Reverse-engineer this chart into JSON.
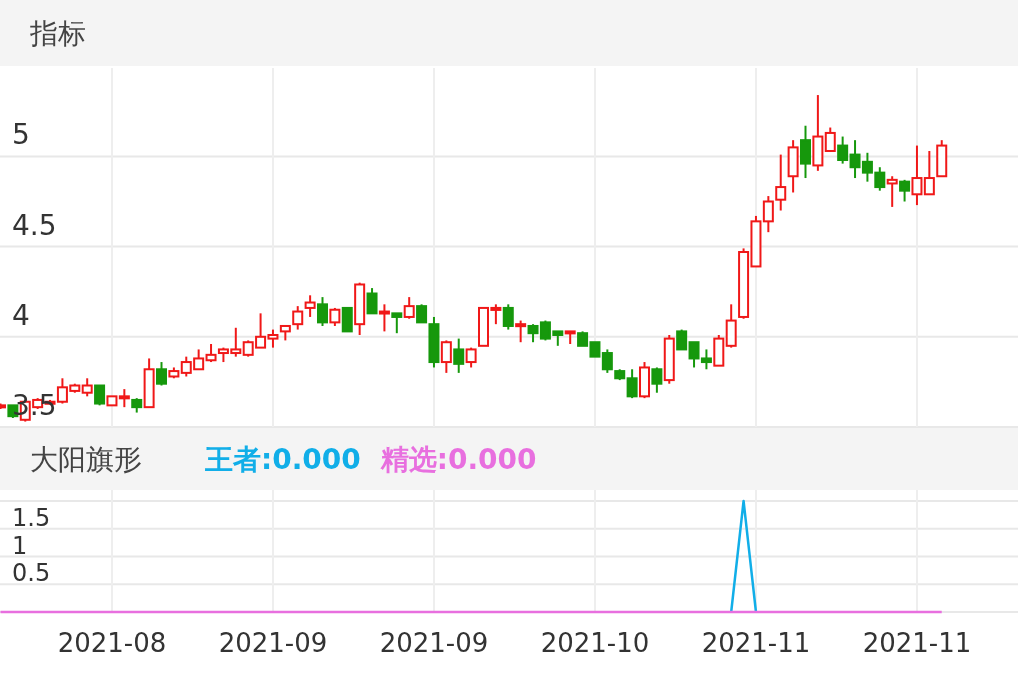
{
  "chart_data": [
    {
      "type": "candlestick",
      "title": "指标",
      "grid": true,
      "tick_labels": "y",
      "categories": [
        null,
        null,
        null,
        null,
        null,
        null,
        null,
        null,
        null,
        "2021-08",
        null,
        null,
        null,
        null,
        null,
        null,
        null,
        null,
        null,
        null,
        null,
        null,
        "2021-09",
        null,
        null,
        null,
        null,
        null,
        null,
        null,
        null,
        null,
        null,
        null,
        null,
        "2021-09",
        null,
        null,
        null,
        null,
        null,
        null,
        null,
        null,
        null,
        null,
        null,
        null,
        "2021-10",
        null,
        null,
        null,
        null,
        null,
        null,
        null,
        null,
        null,
        null,
        null,
        null,
        "2021-11",
        null,
        null,
        null,
        null,
        null,
        null,
        null,
        null,
        null,
        null,
        null,
        null,
        "2021-11",
        null,
        null
      ],
      "ylim": [
        3.5,
        5.49
      ],
      "yticks": [
        3.5,
        4,
        4.5,
        5
      ],
      "ohlc": [
        [
          3.61,
          3.63,
          3.6,
          3.62
        ],
        [
          3.62,
          3.62,
          3.55,
          3.56
        ],
        [
          3.54,
          3.65,
          3.53,
          3.64
        ],
        [
          3.61,
          3.66,
          3.6,
          3.65
        ],
        [
          3.63,
          3.65,
          3.63,
          3.64
        ],
        [
          3.64,
          3.77,
          3.63,
          3.72
        ],
        [
          3.7,
          3.74,
          3.69,
          3.73
        ],
        [
          3.69,
          3.77,
          3.67,
          3.73
        ],
        [
          3.73,
          3.73,
          3.62,
          3.63
        ],
        [
          3.62,
          3.67,
          3.62,
          3.67
        ],
        [
          3.66,
          3.71,
          3.61,
          3.67
        ],
        [
          3.65,
          3.66,
          3.58,
          3.61
        ],
        [
          3.61,
          3.88,
          3.61,
          3.82
        ],
        [
          3.82,
          3.86,
          3.73,
          3.74
        ],
        [
          3.78,
          3.83,
          3.77,
          3.81
        ],
        [
          3.8,
          3.89,
          3.78,
          3.86
        ],
        [
          3.82,
          3.93,
          3.82,
          3.88
        ],
        [
          3.87,
          3.96,
          3.86,
          3.9
        ],
        [
          3.91,
          3.94,
          3.86,
          3.93
        ],
        [
          3.91,
          4.05,
          3.89,
          3.93
        ],
        [
          3.9,
          3.98,
          3.89,
          3.97
        ],
        [
          3.94,
          4.13,
          3.94,
          4.0
        ],
        [
          3.99,
          4.04,
          3.94,
          4.01
        ],
        [
          4.03,
          4.06,
          3.98,
          4.06
        ],
        [
          4.07,
          4.17,
          4.04,
          4.14
        ],
        [
          4.16,
          4.23,
          4.11,
          4.19
        ],
        [
          4.18,
          4.22,
          4.06,
          4.08
        ],
        [
          4.08,
          4.16,
          4.06,
          4.15
        ],
        [
          4.16,
          4.16,
          4.03,
          4.03
        ],
        [
          4.07,
          4.3,
          4.01,
          4.29
        ],
        [
          4.24,
          4.27,
          4.13,
          4.13
        ],
        [
          4.13,
          4.18,
          4.03,
          4.14
        ],
        [
          4.13,
          4.13,
          4.02,
          4.11
        ],
        [
          4.11,
          4.22,
          4.1,
          4.17
        ],
        [
          4.17,
          4.18,
          4.08,
          4.08
        ],
        [
          4.07,
          4.11,
          3.83,
          3.86
        ],
        [
          3.86,
          3.98,
          3.8,
          3.97
        ],
        [
          3.93,
          3.99,
          3.8,
          3.85
        ],
        [
          3.86,
          3.94,
          3.83,
          3.93
        ],
        [
          3.95,
          4.16,
          3.95,
          4.16
        ],
        [
          4.15,
          4.18,
          4.07,
          4.16
        ],
        [
          4.16,
          4.18,
          4.04,
          4.06
        ],
        [
          4.06,
          4.09,
          3.97,
          4.07
        ],
        [
          4.06,
          4.07,
          3.97,
          4.02
        ],
        [
          4.08,
          4.09,
          3.98,
          3.99
        ],
        [
          4.03,
          4.03,
          3.95,
          4.01
        ],
        [
          4.02,
          4.03,
          3.96,
          4.03
        ],
        [
          4.02,
          4.03,
          3.95,
          3.95
        ],
        [
          3.97,
          3.97,
          3.89,
          3.89
        ],
        [
          3.91,
          3.93,
          3.8,
          3.82
        ],
        [
          3.81,
          3.82,
          3.76,
          3.77
        ],
        [
          3.77,
          3.82,
          3.66,
          3.67
        ],
        [
          3.67,
          3.86,
          3.66,
          3.83
        ],
        [
          3.82,
          3.83,
          3.69,
          3.74
        ],
        [
          3.76,
          4.01,
          3.74,
          3.99
        ],
        [
          4.03,
          4.04,
          3.93,
          3.93
        ],
        [
          3.97,
          3.97,
          3.83,
          3.88
        ],
        [
          3.88,
          3.93,
          3.82,
          3.86
        ],
        [
          3.84,
          4.01,
          3.84,
          3.99
        ],
        [
          3.95,
          4.18,
          3.94,
          4.09
        ],
        [
          4.11,
          4.49,
          4.1,
          4.47
        ],
        [
          4.39,
          4.67,
          4.39,
          4.64
        ],
        [
          4.64,
          4.78,
          4.58,
          4.75
        ],
        [
          4.76,
          5.01,
          4.7,
          4.83
        ],
        [
          4.89,
          5.09,
          4.8,
          5.05
        ],
        [
          5.09,
          5.17,
          4.88,
          4.96
        ],
        [
          4.95,
          5.34,
          4.92,
          5.11
        ],
        [
          5.03,
          5.16,
          5.03,
          5.13
        ],
        [
          5.06,
          5.11,
          4.96,
          4.98
        ],
        [
          5.01,
          5.09,
          4.88,
          4.94
        ],
        [
          4.97,
          5.02,
          4.86,
          4.91
        ],
        [
          4.91,
          4.94,
          4.81,
          4.83
        ],
        [
          4.85,
          4.89,
          4.72,
          4.87
        ],
        [
          4.86,
          4.87,
          4.75,
          4.81
        ],
        [
          4.79,
          5.06,
          4.73,
          4.88
        ],
        [
          4.79,
          5.03,
          4.79,
          4.88
        ],
        [
          4.89,
          5.09,
          4.89,
          5.06
        ]
      ],
      "colors": [
        "#f01818",
        "#16980c",
        "#f01818",
        "#f01818",
        "#f01818",
        "#f01818",
        "#f01818",
        "#f01818",
        "#16980c",
        "#f01818",
        "#f01818",
        "#16980c",
        "#f01818",
        "#16980c",
        "#f01818",
        "#f01818",
        "#f01818",
        "#f01818",
        "#f01818",
        "#f01818",
        "#f01818",
        "#f01818",
        "#f01818",
        "#f01818",
        "#f01818",
        "#f01818",
        "#16980c",
        "#f01818",
        "#16980c",
        "#f01818",
        "#16980c",
        "#f01818",
        "#16980c",
        "#f01818",
        "#16980c",
        "#16980c",
        "#f01818",
        "#16980c",
        "#f01818",
        "#f01818",
        "#f01818",
        "#16980c",
        "#f01818",
        "#16980c",
        "#16980c",
        "#16980c",
        "#f01818",
        "#16980c",
        "#16980c",
        "#16980c",
        "#16980c",
        "#16980c",
        "#f01818",
        "#16980c",
        "#f01818",
        "#16980c",
        "#16980c",
        "#16980c",
        "#f01818",
        "#f01818",
        "#f01818",
        "#f01818",
        "#f01818",
        "#f01818",
        "#f01818",
        "#16980c",
        "#f01818",
        "#f01818",
        "#16980c",
        "#16980c",
        "#16980c",
        "#16980c",
        "#f01818",
        "#16980c",
        "#f01818",
        "#f01818",
        "#f01818"
      ]
    },
    {
      "type": "line",
      "title": "大阳旗形",
      "grid": true,
      "legend": "top left",
      "categories": [
        null,
        null,
        null,
        null,
        null,
        null,
        null,
        null,
        null,
        "2021-08",
        null,
        null,
        null,
        null,
        null,
        null,
        null,
        null,
        null,
        null,
        null,
        null,
        "2021-09",
        null,
        null,
        null,
        null,
        null,
        null,
        null,
        null,
        null,
        null,
        null,
        null,
        "2021-09",
        null,
        null,
        null,
        null,
        null,
        null,
        null,
        null,
        null,
        null,
        null,
        null,
        "2021-10",
        null,
        null,
        null,
        null,
        null,
        null,
        null,
        null,
        null,
        null,
        null,
        null,
        "2021-11",
        null,
        null,
        null,
        null,
        null,
        null,
        null,
        null,
        null,
        null,
        null,
        null,
        "2021-11",
        null,
        null
      ],
      "ylim": [
        0,
        2
      ],
      "yticks": [
        {
          "value": 0,
          "label": null
        },
        0.5,
        1,
        1.5,
        {
          "value": 2,
          "label": null
        }
      ],
      "series": [
        {
          "name": "王者:0.000",
          "color": "#11aee8",
          "values": [
            null,
            null,
            null,
            null,
            null,
            null,
            null,
            null,
            null,
            null,
            null,
            null,
            null,
            null,
            null,
            null,
            null,
            null,
            null,
            null,
            null,
            null,
            null,
            null,
            null,
            null,
            null,
            null,
            null,
            null,
            null,
            null,
            null,
            null,
            null,
            null,
            null,
            null,
            null,
            null,
            null,
            null,
            null,
            null,
            null,
            null,
            null,
            null,
            null,
            null,
            null,
            null,
            null,
            null,
            null,
            null,
            null,
            null,
            null,
            0,
            2,
            0,
            null,
            null,
            null,
            null,
            null,
            null,
            null,
            null,
            null,
            null,
            null,
            null,
            null,
            null,
            null
          ]
        },
        {
          "name": "精选:0.000",
          "color": "#e86fdf",
          "values": [
            0,
            0,
            0,
            0,
            0,
            0,
            0,
            0,
            0,
            0,
            0,
            0,
            0,
            0,
            0,
            0,
            0,
            0,
            0,
            0,
            0,
            0,
            0,
            0,
            0,
            0,
            0,
            0,
            0,
            0,
            0,
            0,
            0,
            0,
            0,
            0,
            0,
            0,
            0,
            0,
            0,
            0,
            0,
            0,
            0,
            0,
            0,
            0,
            0,
            0,
            0,
            0,
            0,
            0,
            0,
            0,
            0,
            0,
            0,
            0,
            0,
            0,
            0,
            0,
            0,
            0,
            0,
            0,
            0,
            0,
            0,
            0,
            0,
            0,
            0,
            0,
            0
          ]
        }
      ]
    }
  ]
}
